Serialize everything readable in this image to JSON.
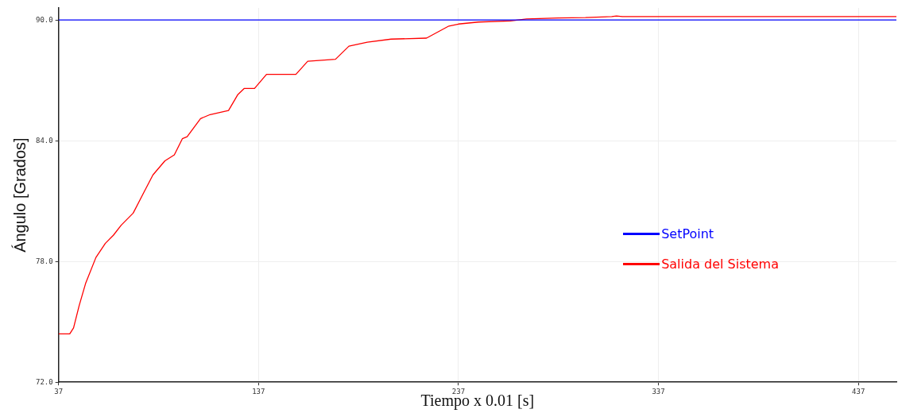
{
  "chart_data": {
    "type": "line",
    "xlabel": "Tiempo x 0.01 [s]",
    "ylabel": "Ángulo [Grados]",
    "xlim": [
      37,
      456
    ],
    "xticks": [
      37,
      137,
      237,
      337,
      437
    ],
    "ylim": [
      72,
      90.6
    ],
    "yticks": [
      {
        "value": 72,
        "label": "72.0"
      },
      {
        "value": 78,
        "label": "78.0"
      },
      {
        "value": 84,
        "label": "84.0"
      },
      {
        "value": 90,
        "label": "90.0"
      }
    ],
    "grid": true,
    "legend": "right",
    "marker": "none",
    "line_style": "solid",
    "series": [
      {
        "name": "SetPoint",
        "color": "#0000ff",
        "x": [
          37,
          456
        ],
        "values": [
          90,
          90
        ]
      },
      {
        "name": "Salida del Sistema",
        "color": "#ff0000",
        "x": [
          37,
          42.6,
          44.5,
          47.3,
          50.5,
          55.7,
          60.4,
          64.4,
          68.3,
          74.3,
          79.5,
          84.2,
          90.2,
          94.9,
          98.9,
          101.3,
          108,
          112.8,
          122,
          126.7,
          129.9,
          135,
          141,
          155.7,
          161.6,
          175.5,
          182.2,
          191.4,
          203.3,
          221,
          232.2,
          237,
          247,
          263,
          271,
          287,
          300.5,
          313.6,
          316,
          319,
          456
        ],
        "values": [
          74.4,
          74.4,
          74.7,
          75.8,
          76.9,
          78.2,
          78.9,
          79.3,
          79.8,
          80.4,
          81.4,
          82.3,
          83.0,
          83.3,
          84.1,
          84.2,
          85.1,
          85.3,
          85.5,
          86.3,
          86.6,
          86.6,
          87.3,
          87.3,
          87.95,
          88.05,
          88.7,
          88.9,
          89.05,
          89.1,
          89.7,
          89.8,
          89.9,
          89.95,
          90.05,
          90.1,
          90.12,
          90.17,
          90.2,
          90.17,
          90.17
        ]
      }
    ]
  }
}
